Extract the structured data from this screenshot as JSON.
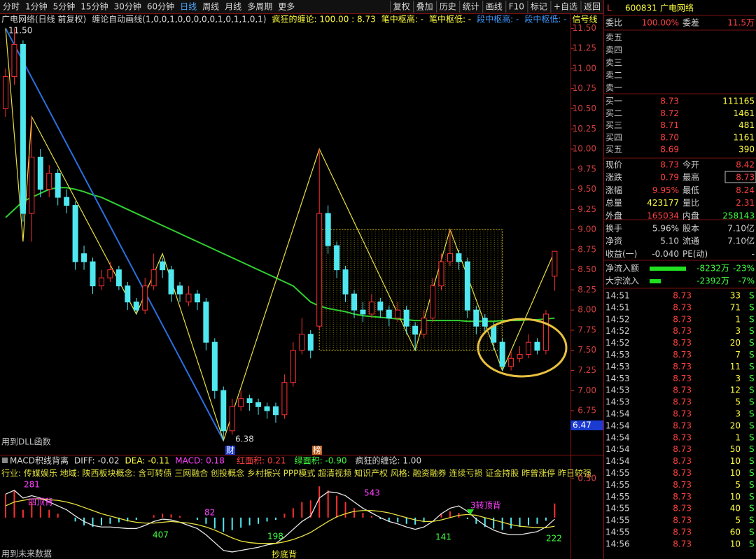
{
  "toolbar": {
    "left": [
      "分时",
      "1分钟",
      "5分钟",
      "15分钟",
      "30分钟",
      "60分钟",
      "日线",
      "周线",
      "月线",
      "多周期",
      "更多"
    ],
    "right": [
      "复权",
      "叠加",
      "历史",
      "统计",
      "画线",
      "F10",
      "标记",
      "+自选",
      "返回"
    ]
  },
  "main": {
    "title": "广电网络(日线 前复权)",
    "indicator": "缠论自动画线(1,0,0,1,0,0,0,0,0,1,0,1,1,0,1)",
    "crazy": "疯狂的缠论: 100.00 : 8.73",
    "bi_high": "笔中枢高: -",
    "bi_low": "笔中枢低: -",
    "duan_high": "段中枢高: -",
    "duan_low": "段中枢低: -",
    "signal": "信号线",
    "high_label": "11.50",
    "low_label": "6.38",
    "cursor_price": "6.47",
    "dll": "用到DLL函数",
    "marker_cai": "财",
    "marker_bang": "榜",
    "ylim": [
      6.42,
      11.66
    ],
    "yticks": [
      {
        "value": 11.5,
        "label": "11.50"
      },
      {
        "value": 11.25,
        "label": "11.25"
      },
      {
        "value": 11,
        "label": "11.00"
      },
      {
        "value": 10.75,
        "label": "10.75"
      },
      {
        "value": 10.5,
        "label": "10.50"
      },
      {
        "value": 10.25,
        "label": "10.25"
      },
      {
        "value": 10,
        "label": "10.00"
      },
      {
        "value": 9.75,
        "label": "9.75"
      },
      {
        "value": 9.5,
        "label": "9.50"
      },
      {
        "value": 9.25,
        "label": "9.25"
      },
      {
        "value": 9,
        "label": "9.00"
      },
      {
        "value": 8.75,
        "label": "8.75"
      },
      {
        "value": 8.5,
        "label": "8.50"
      },
      {
        "value": 8.25,
        "label": "8.25"
      },
      {
        "value": 8,
        "label": "8.00"
      },
      {
        "value": 7.75,
        "label": "7.75"
      },
      {
        "value": 7.5,
        "label": "7.50"
      },
      {
        "value": 7.25,
        "label": "7.25"
      },
      {
        "value": 7,
        "label": "7.00"
      },
      {
        "value": 6.75,
        "label": "6.75"
      }
    ],
    "ohlc": [
      [
        10.5,
        11.0,
        10.4,
        10.9
      ],
      [
        10.9,
        11.5,
        10.8,
        11.3
      ],
      [
        11.3,
        11.35,
        9.1,
        9.2
      ],
      [
        9.2,
        10.4,
        8.85,
        9.9
      ],
      [
        9.9,
        10.0,
        9.4,
        9.5
      ],
      [
        9.5,
        9.8,
        9.4,
        9.7
      ],
      [
        9.7,
        9.75,
        9.3,
        9.4
      ],
      [
        9.4,
        9.5,
        9.2,
        9.3
      ],
      [
        9.3,
        9.35,
        8.5,
        8.6
      ],
      [
        8.7,
        8.8,
        8.5,
        8.6
      ],
      [
        8.6,
        8.65,
        8.2,
        8.3
      ],
      [
        8.3,
        8.5,
        8.25,
        8.4
      ],
      [
        8.4,
        8.6,
        8.35,
        8.5
      ],
      [
        8.5,
        8.55,
        8.25,
        8.3
      ],
      [
        8.3,
        8.35,
        8.0,
        8.1
      ],
      [
        8.1,
        8.15,
        7.95,
        8.0
      ],
      [
        8.0,
        8.4,
        7.95,
        8.3
      ],
      [
        8.3,
        8.7,
        8.25,
        8.5
      ],
      [
        8.6,
        8.65,
        8.4,
        8.5
      ],
      [
        8.5,
        8.55,
        8.1,
        8.2
      ],
      [
        8.3,
        8.35,
        8.1,
        8.2
      ],
      [
        8.1,
        8.3,
        8.05,
        8.2
      ],
      [
        8.2,
        8.25,
        8.0,
        8.1
      ],
      [
        8.1,
        8.15,
        7.5,
        7.6
      ],
      [
        7.6,
        7.65,
        6.9,
        7.0
      ],
      [
        7.0,
        7.05,
        6.38,
        6.5
      ],
      [
        6.5,
        6.9,
        6.45,
        6.8
      ],
      [
        6.8,
        7.0,
        6.75,
        6.9
      ],
      [
        6.9,
        6.95,
        6.75,
        6.85
      ],
      [
        6.85,
        6.9,
        6.7,
        6.8
      ],
      [
        6.8,
        6.85,
        6.65,
        6.75
      ],
      [
        6.8,
        6.85,
        6.6,
        6.7
      ],
      [
        6.7,
        7.2,
        6.65,
        7.1
      ],
      [
        7.1,
        7.6,
        7.05,
        7.5
      ],
      [
        7.5,
        7.9,
        7.45,
        7.7
      ],
      [
        7.7,
        7.75,
        7.4,
        7.5
      ],
      [
        7.8,
        10.0,
        7.75,
        9.2
      ],
      [
        9.2,
        9.3,
        8.7,
        8.8
      ],
      [
        8.8,
        8.85,
        8.4,
        8.5
      ],
      [
        8.5,
        8.55,
        8.1,
        8.2
      ],
      [
        8.2,
        8.25,
        7.9,
        8.0
      ],
      [
        8.0,
        8.1,
        7.85,
        7.95
      ],
      [
        7.95,
        8.2,
        7.9,
        8.1
      ],
      [
        8.1,
        8.15,
        7.9,
        8.0
      ],
      [
        8.0,
        8.05,
        7.8,
        7.9
      ],
      [
        7.9,
        8.1,
        7.85,
        8.0
      ],
      [
        8.0,
        8.05,
        7.7,
        7.8
      ],
      [
        7.8,
        7.85,
        7.5,
        7.7
      ],
      [
        7.7,
        8.0,
        7.65,
        7.9
      ],
      [
        7.9,
        8.4,
        7.85,
        8.3
      ],
      [
        8.3,
        8.7,
        8.25,
        8.6
      ],
      [
        8.6,
        9.0,
        8.55,
        8.7
      ],
      [
        8.7,
        8.75,
        8.5,
        8.6
      ],
      [
        8.6,
        8.65,
        7.9,
        8.0
      ],
      [
        8.0,
        8.05,
        7.7,
        7.8
      ],
      [
        7.9,
        7.95,
        7.7,
        7.8
      ],
      [
        7.8,
        7.85,
        7.5,
        7.6
      ],
      [
        7.6,
        7.65,
        7.25,
        7.3
      ],
      [
        7.3,
        7.5,
        7.25,
        7.4
      ],
      [
        7.4,
        7.55,
        7.35,
        7.45
      ],
      [
        7.45,
        7.7,
        7.4,
        7.6
      ],
      [
        7.6,
        7.65,
        7.45,
        7.5
      ],
      [
        7.5,
        8.0,
        7.45,
        7.95
      ],
      [
        8.42,
        8.73,
        8.24,
        8.73
      ]
    ],
    "ma": [
      9.15,
      9.25,
      9.35,
      9.4,
      9.45,
      9.5,
      9.52,
      9.52,
      9.5,
      9.47,
      9.43,
      9.4,
      9.35,
      9.3,
      9.25,
      9.2,
      9.15,
      9.1,
      9.05,
      9.0,
      8.95,
      8.9,
      8.85,
      8.8,
      8.75,
      8.7,
      8.65,
      8.6,
      8.55,
      8.5,
      8.45,
      8.4,
      8.35,
      8.3,
      8.2,
      8.1,
      8.05,
      8.02,
      8.0,
      7.98,
      7.95,
      7.93,
      7.92,
      7.91,
      7.9,
      7.89,
      7.88,
      7.87,
      7.87,
      7.87,
      7.87,
      7.87,
      7.87,
      7.86,
      7.86,
      7.86,
      7.86,
      7.87,
      7.87,
      7.87,
      7.88,
      7.88,
      7.89,
      7.9
    ],
    "bi": {
      "x": [
        0,
        2,
        3,
        15,
        18,
        25,
        36,
        47,
        51,
        57,
        63
      ],
      "y": [
        11.5,
        8.85,
        10.4,
        7.95,
        8.7,
        6.38,
        10.0,
        7.5,
        9.0,
        7.25,
        8.73
      ]
    },
    "segment": {
      "x": [
        0,
        25
      ],
      "y": [
        11.5,
        6.38
      ]
    },
    "pivot_zone": {
      "start": 36,
      "end": 57,
      "low": 7.5,
      "high": 9.0
    }
  },
  "macd": {
    "title": "MACD积线背离",
    "diff": "DIFF: -0.02",
    "dea": "DEA: -0.11",
    "macd": "MACD: 0.18",
    "red": "红面积: 0.21",
    "green": "绿面积: -0.90",
    "crazy": "疯狂的缠论: 1.00",
    "info": "行业: 传媒娱乐   地域: 陕西板块概念: 含可转债 三网融合 创投概念 乡村振兴 PPP模式 超清视频 知识产权 风格: 融资融券 连续亏损 证金持股 昨曾涨停 昨日较强",
    "future": "用到未来数据",
    "ylim": [
      -0.53,
      0.67
    ],
    "yticks": [
      {
        "value": 0.5,
        "label": "0.50"
      }
    ],
    "hist": [
      0.3,
      0.35,
      0.1,
      0.2,
      0.15,
      0.1,
      0.05,
      0,
      -0.05,
      -0.1,
      -0.12,
      -0.1,
      -0.08,
      -0.06,
      -0.05,
      -0.03,
      0,
      0.03,
      0.05,
      0.04,
      0.02,
      0,
      -0.03,
      -0.08,
      -0.14,
      -0.18,
      -0.16,
      -0.13,
      -0.1,
      -0.08,
      -0.05,
      -0.03,
      0.05,
      0.12,
      0.2,
      0.22,
      0.4,
      0.35,
      0.28,
      0.2,
      0.12,
      0.06,
      0.02,
      -0.02,
      -0.05,
      -0.06,
      -0.08,
      -0.09,
      -0.06,
      0,
      0.05,
      0.08,
      0.06,
      -0.02,
      -0.08,
      -0.12,
      -0.14,
      -0.16,
      -0.14,
      -0.12,
      -0.1,
      -0.08,
      -0.04,
      0.18
    ],
    "diff_line": [
      0.3,
      0.35,
      0.25,
      0.28,
      0.25,
      0.2,
      0.15,
      0.1,
      0.02,
      -0.05,
      -0.1,
      -0.12,
      -0.12,
      -0.13,
      -0.14,
      -0.14,
      -0.1,
      -0.05,
      -0.02,
      -0.03,
      -0.06,
      -0.1,
      -0.14,
      -0.22,
      -0.32,
      -0.42,
      -0.44,
      -0.42,
      -0.4,
      -0.38,
      -0.35,
      -0.33,
      -0.25,
      -0.15,
      -0.05,
      0.02,
      0.25,
      0.33,
      0.32,
      0.28,
      0.2,
      0.12,
      0.06,
      0,
      -0.05,
      -0.08,
      -0.12,
      -0.15,
      -0.12,
      -0.05,
      0.05,
      0.12,
      0.15,
      0.08,
      -0.02,
      -0.1,
      -0.16,
      -0.2,
      -0.22,
      -0.22,
      -0.2,
      -0.18,
      -0.12,
      -0.02
    ],
    "dea_line": [
      0.15,
      0.2,
      0.22,
      0.24,
      0.24,
      0.23,
      0.22,
      0.2,
      0.17,
      0.13,
      0.09,
      0.05,
      0.02,
      -0.01,
      -0.04,
      -0.06,
      -0.07,
      -0.07,
      -0.06,
      -0.05,
      -0.06,
      -0.07,
      -0.09,
      -0.12,
      -0.16,
      -0.21,
      -0.26,
      -0.3,
      -0.32,
      -0.33,
      -0.33,
      -0.33,
      -0.31,
      -0.28,
      -0.24,
      -0.19,
      -0.12,
      -0.05,
      0.01,
      0.05,
      0.08,
      0.09,
      0.09,
      0.08,
      0.06,
      0.03,
      0,
      -0.03,
      -0.05,
      -0.05,
      -0.03,
      0,
      0.03,
      0.04,
      0.03,
      0,
      -0.03,
      -0.06,
      -0.09,
      -0.11,
      -0.12,
      -0.13,
      -0.13,
      -0.11
    ],
    "annotations": [
      "281",
      "四顶背",
      "543",
      "82",
      "407",
      "198",
      "141",
      "3转顶背",
      "抄底背",
      "222"
    ]
  },
  "panel": {
    "flag": "L",
    "code": "600831",
    "name": "广电网络",
    "wb_label": "委比",
    "wb": "100.00%",
    "wc_label": "委差",
    "wc": "11.5万",
    "sell": [
      "卖五",
      "卖四",
      "卖三",
      "卖二",
      "卖一"
    ],
    "buy": [
      [
        "买一",
        "8.73",
        "111165"
      ],
      [
        "买二",
        "8.72",
        "1461"
      ],
      [
        "买三",
        "8.71",
        "481"
      ],
      [
        "买四",
        "8.70",
        "1161"
      ],
      [
        "买五",
        "8.69",
        "390"
      ]
    ],
    "quotes": [
      [
        "现价",
        "8.73",
        "今开",
        "8.42"
      ],
      [
        "涨跌",
        "0.79",
        "最高",
        "8.73"
      ],
      [
        "涨幅",
        "9.95%",
        "最低",
        "8.24"
      ],
      [
        "总量",
        "423177",
        "量比",
        "2.31"
      ],
      [
        "外盘",
        "165034",
        "内盘",
        "258143"
      ],
      [
        "换手",
        "5.96%",
        "股本",
        "7.10亿"
      ],
      [
        "净资",
        "5.10",
        "流通",
        "7.10亿"
      ],
      [
        "收益(一)",
        "-0.040",
        "PE(动)",
        "-"
      ]
    ],
    "flows": [
      [
        "净流入额",
        "-8232万",
        "-23%"
      ],
      [
        "大宗流入",
        "-2392万",
        "-7%"
      ]
    ],
    "ticks": [
      [
        "14:51",
        "8.73",
        "33",
        "S"
      ],
      [
        "14:51",
        "8.73",
        "71",
        "S"
      ],
      [
        "14:52",
        "8.73",
        "1",
        "S"
      ],
      [
        "14:52",
        "8.73",
        "3",
        "S"
      ],
      [
        "14:52",
        "8.73",
        "20",
        "S"
      ],
      [
        "14:53",
        "8.73",
        "7",
        "S"
      ],
      [
        "14:53",
        "8.73",
        "11",
        "S"
      ],
      [
        "14:53",
        "8.73",
        "3",
        "S"
      ],
      [
        "14:53",
        "8.73",
        "12",
        "S"
      ],
      [
        "14:53",
        "8.73",
        "5",
        "S"
      ],
      [
        "14:54",
        "8.73",
        "3",
        "S"
      ],
      [
        "14:54",
        "8.73",
        "20",
        "S"
      ],
      [
        "14:54",
        "8.73",
        "1",
        "S"
      ],
      [
        "14:54",
        "8.73",
        "50",
        "S"
      ],
      [
        "14:54",
        "8.73",
        "10",
        "S"
      ],
      [
        "14:55",
        "8.73",
        "10",
        "S"
      ],
      [
        "14:55",
        "8.73",
        "5",
        "S"
      ],
      [
        "14:55",
        "8.73",
        "10",
        "S"
      ],
      [
        "14:55",
        "8.73",
        "40",
        "S"
      ],
      [
        "14:55",
        "8.73",
        "5",
        "S"
      ],
      [
        "14:55",
        "8.73",
        "60",
        "S"
      ],
      [
        "14:56",
        "8.73",
        "10",
        "S"
      ]
    ]
  }
}
